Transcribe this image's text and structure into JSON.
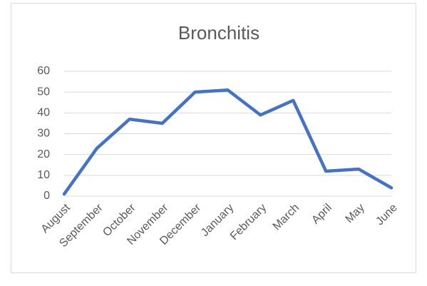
{
  "chart_data": {
    "type": "line",
    "title": "Bronchitis",
    "categories": [
      "August",
      "September",
      "October",
      "November",
      "December",
      "January",
      "February",
      "March",
      "April",
      "May",
      "June"
    ],
    "values": [
      1,
      23,
      37,
      35,
      50,
      51,
      39,
      46,
      12,
      13,
      4
    ],
    "color": "#4472c4",
    "ylim": [
      0,
      60
    ],
    "yticks": [
      0,
      10,
      20,
      30,
      40,
      50,
      60
    ],
    "grid": true
  }
}
